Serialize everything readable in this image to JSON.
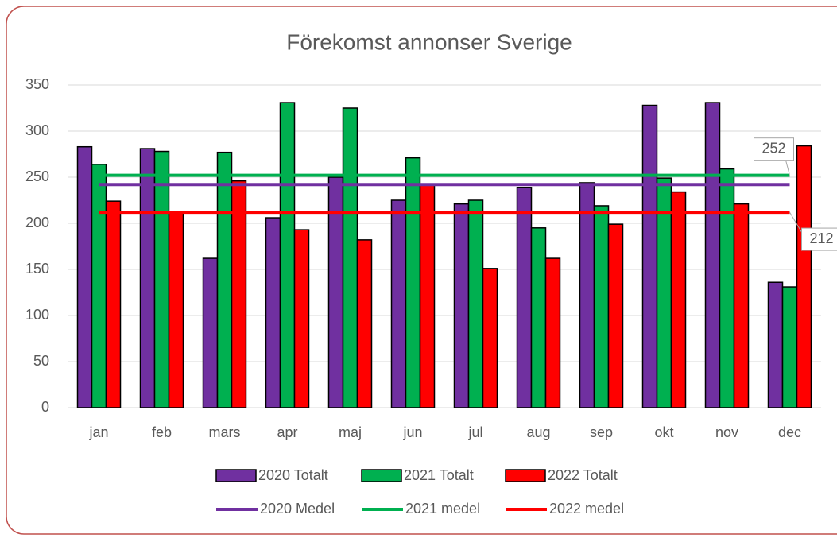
{
  "chart_data": {
    "type": "bar",
    "title": "Förekomst annonser Sverige",
    "categories": [
      "jan",
      "feb",
      "mars",
      "apr",
      "maj",
      "jun",
      "jul",
      "aug",
      "sep",
      "okt",
      "nov",
      "dec"
    ],
    "series": [
      {
        "name": "2020 Totalt",
        "color": "#7030a0",
        "values": [
          283,
          281,
          162,
          206,
          250,
          225,
          221,
          239,
          244,
          328,
          331,
          136
        ]
      },
      {
        "name": "2021 Totalt",
        "color": "#00b050",
        "values": [
          264,
          278,
          277,
          331,
          325,
          271,
          225,
          195,
          219,
          249,
          259,
          131
        ]
      },
      {
        "name": "2022 Totalt",
        "color": "#ff0000",
        "values": [
          224,
          212,
          246,
          193,
          182,
          242,
          151,
          162,
          199,
          234,
          221,
          284
        ]
      }
    ],
    "line_series": [
      {
        "name": "2020 Medel",
        "color": "#7030a0",
        "values": [
          242,
          242,
          242,
          242,
          242,
          242,
          242,
          242,
          242,
          242,
          242,
          242
        ]
      },
      {
        "name": "2021 medel",
        "color": "#00b050",
        "values": [
          252,
          252,
          252,
          252,
          252,
          252,
          252,
          252,
          252,
          252,
          252,
          252
        ],
        "labeled_point": 11
      },
      {
        "name": "2022 medel",
        "color": "#ff0000",
        "values": [
          212,
          212,
          212,
          212,
          212,
          212,
          212,
          212,
          212,
          212,
          212,
          212
        ],
        "labeled_point": 11
      }
    ],
    "ylim": [
      0,
      350
    ],
    "yticks": [
      0,
      50,
      100,
      150,
      200,
      250,
      300,
      350
    ],
    "grid": true,
    "legend": "bottom"
  }
}
